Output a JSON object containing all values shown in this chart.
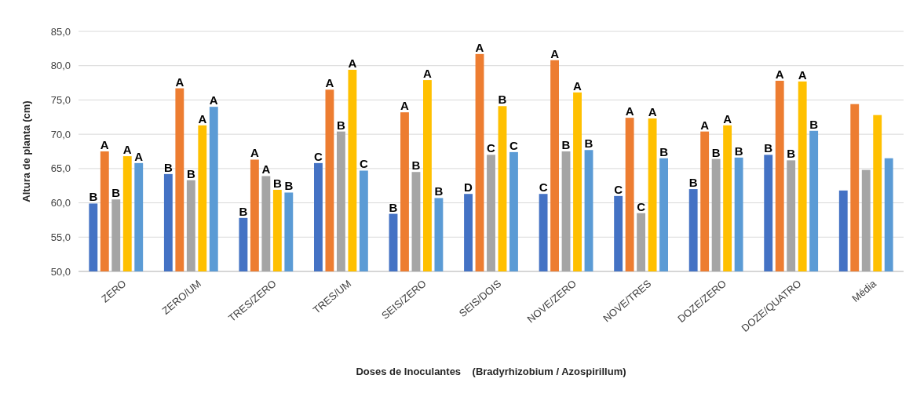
{
  "chart_data": {
    "type": "bar",
    "xlabel": "Doses de Inoculantes    (Bradyrhizobium / Azospirillum)",
    "ylabel": "Altura de planta (cm)",
    "categories": [
      "ZERO",
      "ZERO/UM",
      "TRES/ZERO",
      "TRES/UM",
      "SEIS/ZERO",
      "SEIS/DOIS",
      "NOVE/ZERO",
      "NOVE/TRES",
      "DOZE/ZERO",
      "DOZE/QUATRO",
      "Média"
    ],
    "series": [
      {
        "color": "#4472c4",
        "values": [
          59.9,
          64.2,
          57.8,
          65.8,
          58.4,
          61.3,
          61.3,
          61.0,
          62.0,
          67.0,
          61.8
        ],
        "value_labels": [
          "B",
          "B",
          "B",
          "C",
          "B",
          "D",
          "C",
          "C",
          "B",
          "B",
          null
        ]
      },
      {
        "color": "#ed7d31",
        "values": [
          67.5,
          76.7,
          66.3,
          76.5,
          73.2,
          81.7,
          80.8,
          72.4,
          70.4,
          77.8,
          74.4
        ],
        "value_labels": [
          "A",
          "A",
          "A",
          "A",
          "A",
          "A",
          "A",
          "A",
          "A",
          "A",
          null
        ]
      },
      {
        "color": "#a5a5a5",
        "values": [
          60.5,
          63.3,
          63.9,
          70.4,
          64.5,
          67.0,
          67.5,
          58.5,
          66.4,
          66.2,
          64.8
        ],
        "value_labels": [
          "B",
          "B",
          "A",
          "B",
          "B",
          "C",
          "B",
          "C",
          "B",
          "B",
          null
        ]
      },
      {
        "color": "#ffc000",
        "values": [
          66.8,
          71.3,
          61.9,
          79.4,
          77.9,
          74.1,
          76.1,
          72.3,
          71.3,
          77.7,
          72.8
        ],
        "value_labels": [
          "A",
          "A",
          "B",
          "A",
          "A",
          "B",
          "A",
          "A",
          "A",
          "A",
          null
        ]
      },
      {
        "color": "#5b9bd5",
        "values": [
          65.8,
          74.0,
          61.5,
          64.7,
          60.7,
          67.4,
          67.7,
          66.5,
          66.6,
          70.5,
          66.5
        ],
        "value_labels": [
          "A",
          "A",
          "B",
          "C",
          "B",
          "C",
          "B",
          "B",
          "B",
          "B",
          null
        ]
      }
    ],
    "ylim": [
      50,
      85
    ],
    "yticks": [
      {
        "value": 50,
        "label": "50,0"
      },
      {
        "value": 55,
        "label": "55,0"
      },
      {
        "value": 60,
        "label": "60,0"
      },
      {
        "value": 65,
        "label": "65,0"
      },
      {
        "value": 70,
        "label": "70,0"
      },
      {
        "value": 75,
        "label": "75,0"
      },
      {
        "value": 80,
        "label": "80,0"
      },
      {
        "value": 85,
        "label": "85,0"
      }
    ],
    "grid": "y"
  }
}
